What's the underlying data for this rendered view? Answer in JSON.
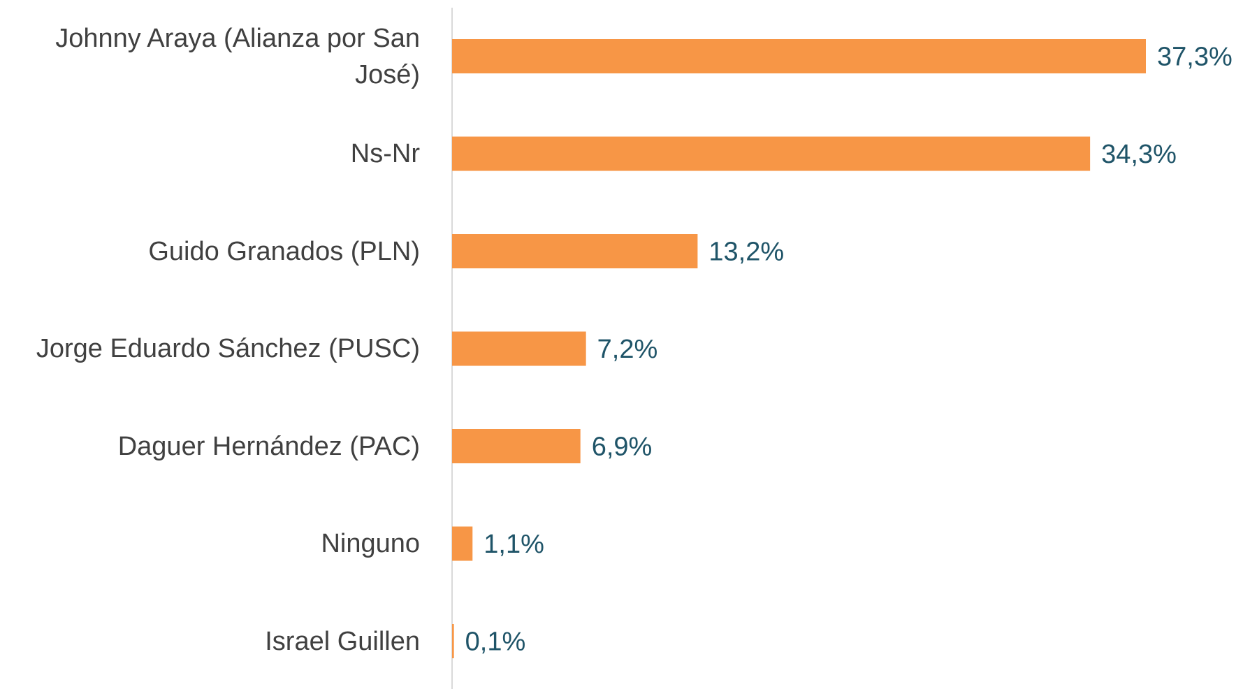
{
  "chart_data": {
    "type": "bar",
    "orientation": "horizontal",
    "categories": [
      "Johnny Araya (Alianza por San José)",
      "Ns-Nr",
      "Guido Granados (PLN)",
      "Jorge Eduardo Sánchez (PUSC)",
      "Daguer Hernández (PAC)",
      "Ninguno",
      "Israel Guillen"
    ],
    "values": [
      37.3,
      34.3,
      13.2,
      7.2,
      6.9,
      1.1,
      0.1
    ],
    "value_labels": [
      "37,3%",
      "34,3%",
      "13,2%",
      "7,2%",
      "6,9%",
      "1,1%",
      "0,1%"
    ],
    "color": "#f79646"
  }
}
